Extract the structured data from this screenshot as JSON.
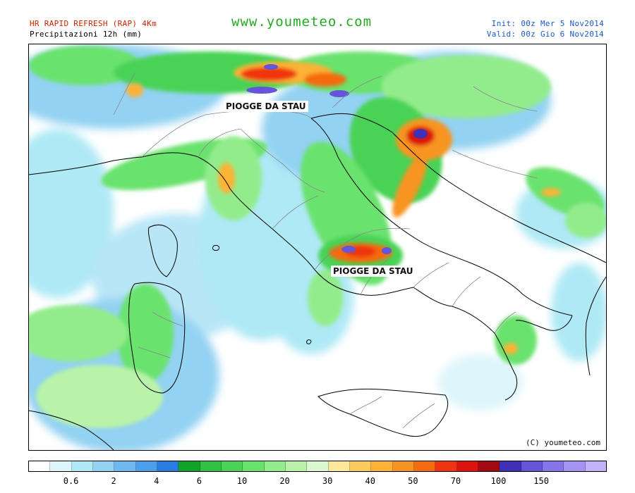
{
  "header": {
    "model_title": "HR RAPID REFRESH (RAP) 4Km",
    "variable_title": "Precipitazioni 12h (mm)",
    "site_url": "www.youmeteo.com",
    "init_time": "Init: 00z Mer  5  Nov2014",
    "valid_time": "Valid: 00z Gio  6  Nov2014"
  },
  "map": {
    "region": "Italy and surrounding seas",
    "annotations": [
      "PIOGGE DA STAU",
      "PIOGGE DA STAU"
    ],
    "copyright": "(C) youmeteo.com"
  },
  "legend": {
    "colors": [
      "#ffffff",
      "#ddf6fb",
      "#aee9f5",
      "#93d2f2",
      "#6eb9f0",
      "#4aa0ea",
      "#2a7de0",
      "#0ea52a",
      "#30c243",
      "#4ad357",
      "#6ae26e",
      "#93ec8b",
      "#b9f3a9",
      "#dbf8cf",
      "#fde89a",
      "#fccb5d",
      "#fbb236",
      "#f79421",
      "#f46b10",
      "#ee3410",
      "#db1410",
      "#a10a10",
      "#4030b8",
      "#6654d9",
      "#8674ea",
      "#a593f3",
      "#c2b3fa"
    ],
    "tick_labels": [
      "0.6",
      "2",
      "4",
      "6",
      "10",
      "20",
      "30",
      "40",
      "50",
      "70",
      "100",
      "150"
    ],
    "tick_positions": [
      2,
      4,
      6,
      8,
      10,
      12,
      14,
      16,
      18,
      20,
      22,
      24
    ]
  }
}
